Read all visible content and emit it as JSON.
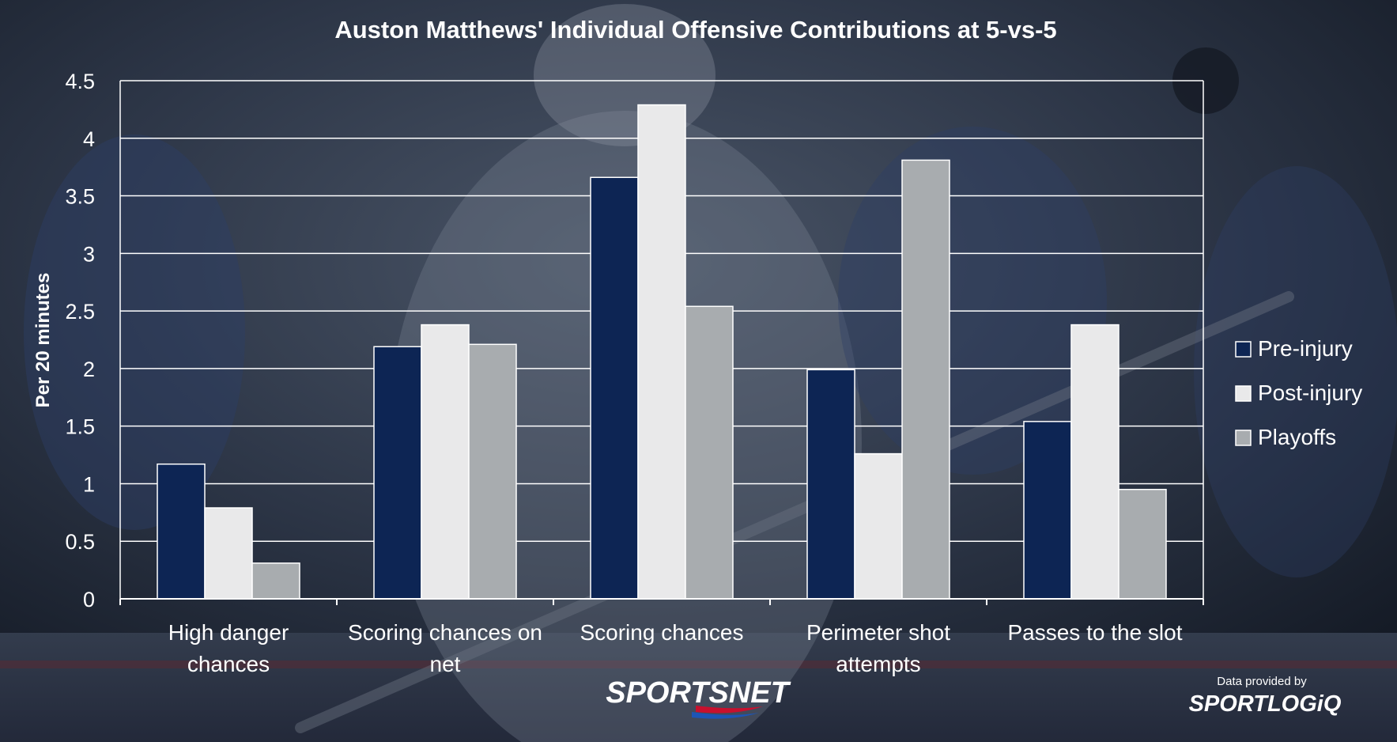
{
  "brand": {
    "sportsnet": "SPORTSNET",
    "provider_caption": "Data provided by",
    "provider_logo": "SPORTLOGiQ"
  },
  "colors": {
    "pre_injury": "#0d2554",
    "post_injury": "#e9e9ea",
    "playoffs": "#a8acaf",
    "background": "#1c2433",
    "text": "#ffffff"
  },
  "chart_data": {
    "type": "bar",
    "title": "Auston Matthews' Individual Offensive Contributions at 5-vs-5",
    "xlabel": "",
    "ylabel": "Per 20 minutes",
    "ylim": [
      0,
      4.5
    ],
    "yticks": [
      "0",
      "0.5",
      "1",
      "1.5",
      "2",
      "2.5",
      "3",
      "3.5",
      "4",
      "4.5"
    ],
    "grid": true,
    "legend_position": "right",
    "categories": [
      [
        "High danger",
        "chances"
      ],
      [
        "Scoring chances on",
        "net"
      ],
      [
        "Scoring chances"
      ],
      [
        "Perimeter shot",
        "attempts"
      ],
      [
        "Passes to the slot"
      ]
    ],
    "series": [
      {
        "name": "Pre-injury",
        "color": "#0d2554",
        "values": [
          1.17,
          2.19,
          3.66,
          1.99,
          1.54
        ]
      },
      {
        "name": "Post-injury",
        "color": "#e9e9ea",
        "values": [
          0.79,
          2.38,
          4.29,
          1.26,
          2.38
        ]
      },
      {
        "name": "Playoffs",
        "color": "#a8acaf",
        "values": [
          0.31,
          2.21,
          2.54,
          3.81,
          0.95
        ]
      }
    ]
  }
}
